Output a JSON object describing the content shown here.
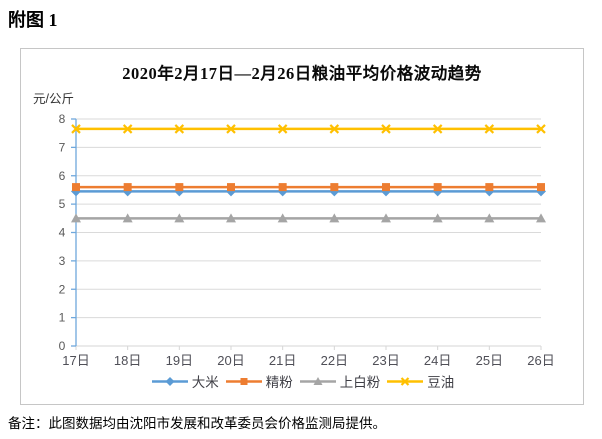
{
  "page": {
    "heading": "附图 1",
    "note": "备注：此图数据均由沈阳市发展和改革委员会价格监测局提供。"
  },
  "chart_data": {
    "type": "line",
    "title": "2020年2月17日—2月26日粮油平均价格波动趋势",
    "ylabel": "元/公斤",
    "categories": [
      "17日",
      "18日",
      "19日",
      "20日",
      "21日",
      "22日",
      "23日",
      "24日",
      "25日",
      "26日"
    ],
    "series": [
      {
        "name": "大米",
        "marker": "diamond",
        "color": "#5B9BD5",
        "values": [
          5.45,
          5.45,
          5.45,
          5.45,
          5.45,
          5.45,
          5.45,
          5.45,
          5.45,
          5.45
        ]
      },
      {
        "name": "精粉",
        "marker": "square",
        "color": "#ED7D31",
        "values": [
          5.6,
          5.6,
          5.6,
          5.6,
          5.6,
          5.6,
          5.6,
          5.6,
          5.6,
          5.6
        ]
      },
      {
        "name": "上白粉",
        "marker": "triangle",
        "color": "#A5A5A5",
        "values": [
          4.5,
          4.5,
          4.5,
          4.5,
          4.5,
          4.5,
          4.5,
          4.5,
          4.5,
          4.5
        ]
      },
      {
        "name": "豆油",
        "marker": "x",
        "color": "#FFC000",
        "values": [
          7.65,
          7.65,
          7.65,
          7.65,
          7.65,
          7.65,
          7.65,
          7.65,
          7.65,
          7.65
        ]
      }
    ],
    "ylim": [
      0,
      8
    ],
    "ytick_step": 1,
    "grid": "horizontal",
    "legend_position": "bottom",
    "axis_colors": {
      "y_axis": "#6FA8DC",
      "x_axis": "#D6D6D6",
      "grid": "#DADADA",
      "tick_label": "#595959"
    }
  }
}
